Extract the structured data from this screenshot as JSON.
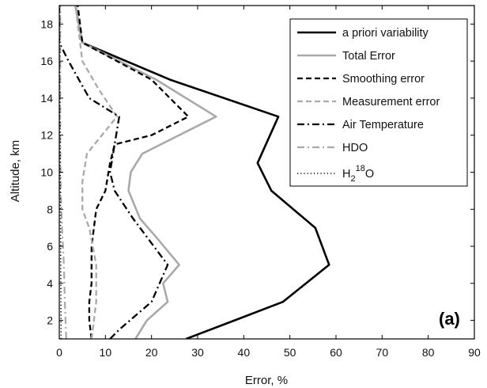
{
  "chart_data": {
    "type": "line",
    "xlabel": "Error, %",
    "ylabel": "Altitude, km",
    "xlim": [
      0,
      90
    ],
    "ylim": [
      1,
      19
    ],
    "x_ticks": [
      0,
      10,
      20,
      30,
      40,
      50,
      60,
      70,
      80,
      90
    ],
    "y_ticks": [
      2,
      4,
      6,
      8,
      10,
      12,
      14,
      16,
      18
    ],
    "grid": false,
    "legend_position": "top-right",
    "panel_label": "(a)",
    "series": [
      {
        "name": "a priori variability",
        "color": "#000000",
        "style": "solid",
        "width": 2.6,
        "points": [
          [
            27.5,
            1
          ],
          [
            38,
            2
          ],
          [
            48.5,
            3
          ],
          [
            58.5,
            5
          ],
          [
            55.5,
            7
          ],
          [
            46,
            9
          ],
          [
            43,
            10.5
          ],
          [
            47.5,
            13
          ],
          [
            24,
            15
          ],
          [
            5,
            17
          ],
          [
            3.5,
            19
          ]
        ]
      },
      {
        "name": "Total Error",
        "color": "#a9a9a9",
        "style": "solid",
        "width": 2.6,
        "points": [
          [
            16.5,
            1
          ],
          [
            19,
            2
          ],
          [
            23.5,
            3
          ],
          [
            22.5,
            4
          ],
          [
            26,
            5
          ],
          [
            21,
            6.5
          ],
          [
            17.5,
            7.5
          ],
          [
            15,
            9
          ],
          [
            15.5,
            10
          ],
          [
            18,
            11
          ],
          [
            34,
            13
          ],
          [
            21,
            15
          ],
          [
            5,
            17
          ],
          [
            3.5,
            19
          ]
        ]
      },
      {
        "name": "Smoothing error",
        "color": "#000000",
        "style": "dash",
        "width": 2.3,
        "points": [
          [
            7,
            1
          ],
          [
            6.5,
            2
          ],
          [
            6.5,
            3
          ],
          [
            7,
            4
          ],
          [
            7,
            5
          ],
          [
            7,
            6
          ],
          [
            7.5,
            7
          ],
          [
            8,
            8
          ],
          [
            10,
            9
          ],
          [
            11,
            10.5
          ],
          [
            12,
            11.5
          ],
          [
            20,
            12
          ],
          [
            28,
            13
          ],
          [
            20,
            15
          ],
          [
            5,
            17
          ],
          [
            4,
            19
          ]
        ]
      },
      {
        "name": "Measurement error",
        "color": "#a9a9a9",
        "style": "dash",
        "width": 2.3,
        "points": [
          [
            7,
            1
          ],
          [
            7.5,
            2
          ],
          [
            8,
            3
          ],
          [
            8,
            5
          ],
          [
            6.5,
            7
          ],
          [
            5,
            8
          ],
          [
            5,
            9.5
          ],
          [
            6,
            11
          ],
          [
            12.5,
            13
          ],
          [
            8.5,
            14.5
          ],
          [
            5,
            16
          ],
          [
            4.5,
            17
          ],
          [
            3.5,
            19
          ]
        ]
      },
      {
        "name": "Air Temperature",
        "color": "#000000",
        "style": "dashdot",
        "width": 2.3,
        "points": [
          [
            11,
            1
          ],
          [
            13,
            1.5
          ],
          [
            20,
            3
          ],
          [
            23.5,
            5
          ],
          [
            16,
            7.5
          ],
          [
            12,
            9
          ],
          [
            11,
            10
          ],
          [
            13,
            13
          ],
          [
            6.5,
            14
          ],
          [
            2,
            16
          ],
          [
            0,
            17
          ],
          [
            0,
            19
          ]
        ]
      },
      {
        "name": "HDO",
        "color": "#a9a9a9",
        "style": "dashdot",
        "width": 2.2,
        "points": [
          [
            1.5,
            1
          ],
          [
            1.2,
            3
          ],
          [
            1,
            5
          ],
          [
            0.6,
            7
          ],
          [
            0.3,
            9
          ],
          [
            0.2,
            12
          ],
          [
            0.2,
            16
          ],
          [
            0.2,
            19
          ]
        ]
      },
      {
        "name": "H218O",
        "name_parts": {
          "base": "H",
          "sub": "2",
          "sup": "18",
          "tail": "O"
        },
        "color": "#000000",
        "style": "dot",
        "width": 1.6,
        "points": [
          [
            0.4,
            1
          ],
          [
            0.3,
            5
          ],
          [
            0.2,
            10
          ],
          [
            0.1,
            15
          ],
          [
            0.1,
            19
          ]
        ]
      }
    ]
  }
}
